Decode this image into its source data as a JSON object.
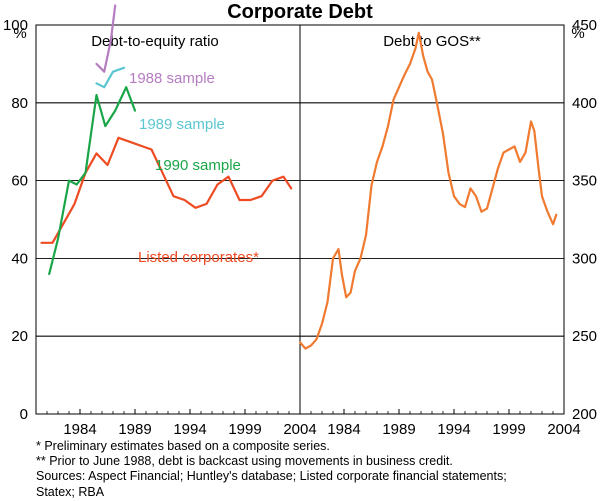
{
  "chart_data": {
    "type": "line",
    "title": "Corporate Debt",
    "panels": [
      {
        "title": "Debt-to-equity ratio",
        "y_unit": "%",
        "ylim": [
          0,
          100
        ],
        "yticks": [
          0,
          20,
          40,
          60,
          80,
          100
        ],
        "xlim": [
          1980.0,
          2004.0
        ],
        "xticks": [
          "1984",
          "1989",
          "1994",
          "1999",
          "2004"
        ],
        "series": [
          {
            "name": "Listed corporates*",
            "color": "#ee4b23",
            "points": [
              [
                1980.5,
                44
              ],
              [
                1981.5,
                44
              ],
              [
                1982.5,
                49
              ],
              [
                1983.5,
                54
              ],
              [
                1984.5,
                62
              ],
              [
                1985.5,
                67
              ],
              [
                1986.5,
                64
              ],
              [
                1987.5,
                71
              ],
              [
                1988.5,
                70
              ],
              [
                1989.5,
                69
              ],
              [
                1990.5,
                68
              ],
              [
                1991.5,
                62
              ],
              [
                1992.5,
                56
              ],
              [
                1993.5,
                55
              ],
              [
                1994.5,
                53
              ],
              [
                1995.5,
                54
              ],
              [
                1996.5,
                59
              ],
              [
                1997.5,
                61
              ],
              [
                1998.5,
                55
              ],
              [
                1999.5,
                55
              ],
              [
                2000.5,
                56
              ],
              [
                2001.5,
                60
              ],
              [
                2002.5,
                61
              ],
              [
                2003.2,
                58
              ]
            ]
          },
          {
            "name": "1990 sample",
            "color": "#1aa648",
            "points": [
              [
                1981.2,
                36
              ],
              [
                1982.0,
                45
              ],
              [
                1983.0,
                60
              ],
              [
                1983.7,
                59
              ],
              [
                1984.5,
                62
              ],
              [
                1985.5,
                82
              ],
              [
                1986.3,
                74
              ],
              [
                1987.2,
                78
              ],
              [
                1988.2,
                84
              ],
              [
                1989.0,
                78
              ]
            ]
          },
          {
            "name": "1989 sample",
            "color": "#5cc6d0",
            "points": [
              [
                1985.5,
                85
              ],
              [
                1986.2,
                84
              ],
              [
                1987.0,
                88
              ],
              [
                1988.0,
                89
              ]
            ]
          },
          {
            "name": "1988 sample",
            "color": "#b57cc0",
            "points": [
              [
                1985.5,
                90
              ],
              [
                1986.2,
                88
              ],
              [
                1986.8,
                96
              ],
              [
                1987.2,
                105
              ]
            ]
          }
        ]
      },
      {
        "title": "Debt to GOS**",
        "y_unit": "%",
        "ylim": [
          200,
          450
        ],
        "yticks": [
          200,
          250,
          300,
          350,
          400,
          450
        ],
        "xlim": [
          1980.0,
          2004.0
        ],
        "xticks": [
          "1984",
          "1989",
          "1994",
          "1999",
          "2004"
        ],
        "series": [
          {
            "name": "Debt to GOS",
            "color": "#f07a30",
            "points": [
              [
                1980.0,
                246
              ],
              [
                1980.5,
                242
              ],
              [
                1981.0,
                244
              ],
              [
                1981.5,
                248
              ],
              [
                1982.0,
                258
              ],
              [
                1982.5,
                272
              ],
              [
                1983.0,
                300
              ],
              [
                1983.5,
                306
              ],
              [
                1983.8,
                290
              ],
              [
                1984.2,
                275
              ],
              [
                1984.6,
                278
              ],
              [
                1985.0,
                292
              ],
              [
                1985.5,
                300
              ],
              [
                1986.0,
                315
              ],
              [
                1986.5,
                347
              ],
              [
                1987.0,
                362
              ],
              [
                1987.5,
                372
              ],
              [
                1988.0,
                385
              ],
              [
                1988.5,
                402
              ],
              [
                1989.0,
                410
              ],
              [
                1989.5,
                418
              ],
              [
                1990.0,
                425
              ],
              [
                1990.5,
                435
              ],
              [
                1990.8,
                445
              ],
              [
                1991.2,
                430
              ],
              [
                1991.6,
                420
              ],
              [
                1992.0,
                415
              ],
              [
                1992.5,
                398
              ],
              [
                1993.0,
                380
              ],
              [
                1993.5,
                355
              ],
              [
                1994.0,
                340
              ],
              [
                1994.5,
                335
              ],
              [
                1995.0,
                333
              ],
              [
                1995.5,
                345
              ],
              [
                1996.0,
                340
              ],
              [
                1996.5,
                330
              ],
              [
                1997.0,
                332
              ],
              [
                1997.5,
                345
              ],
              [
                1998.0,
                358
              ],
              [
                1998.5,
                368
              ],
              [
                1999.0,
                370
              ],
              [
                1999.5,
                372
              ],
              [
                2000.0,
                362
              ],
              [
                2000.5,
                368
              ],
              [
                2001.0,
                388
              ],
              [
                2001.3,
                382
              ],
              [
                2001.7,
                357
              ],
              [
                2002.0,
                340
              ],
              [
                2002.5,
                330
              ],
              [
                2003.0,
                322
              ],
              [
                2003.3,
                328
              ]
            ]
          }
        ]
      }
    ],
    "annotations": [
      {
        "text": "1988 sample",
        "color": "#b57cc0"
      },
      {
        "text": "1989 sample",
        "color": "#5cc6d0"
      },
      {
        "text": "1990 sample",
        "color": "#1aa648"
      },
      {
        "text": "Listed corporates*",
        "color": "#ee4b23"
      }
    ],
    "footnotes": [
      "* Preliminary estimates based on a composite series.",
      "** Prior to June 1988, debt is backcast using movements in business credit.",
      "Sources: Aspect Financial; Huntley's database; Listed corporate financial statements;",
      "Statex; RBA"
    ]
  }
}
